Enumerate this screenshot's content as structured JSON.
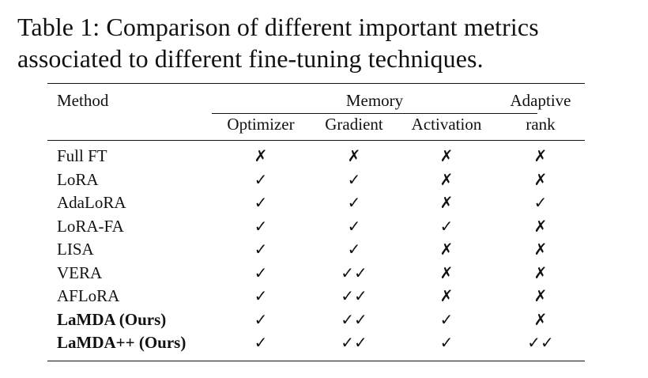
{
  "caption": {
    "line1": "Table 1:  Comparison of different important metrics",
    "line2": "associated to different fine-tuning techniques."
  },
  "header": {
    "method": "Method",
    "memory": "Memory",
    "adaptive_line1": "Adaptive",
    "adaptive_line2": "rank",
    "optimizer": "Optimizer",
    "gradient": "Gradient",
    "activation": "Activation"
  },
  "rows": [
    {
      "method": "Full FT",
      "bold": false,
      "optimizer": "✗",
      "gradient": "✗",
      "activation": "✗",
      "adaptive": "✗"
    },
    {
      "method": "LoRA",
      "bold": false,
      "optimizer": "✓",
      "gradient": "✓",
      "activation": "✗",
      "adaptive": "✗"
    },
    {
      "method": "AdaLoRA",
      "bold": false,
      "optimizer": "✓",
      "gradient": "✓",
      "activation": "✗",
      "adaptive": "✓"
    },
    {
      "method": "LoRA-FA",
      "bold": false,
      "optimizer": "✓",
      "gradient": "✓",
      "activation": "✓",
      "adaptive": "✗"
    },
    {
      "method": "LISA",
      "bold": false,
      "optimizer": "✓",
      "gradient": "✓",
      "activation": "✗",
      "adaptive": "✗"
    },
    {
      "method": "VERA",
      "bold": false,
      "optimizer": "✓",
      "gradient": "✓✓",
      "activation": "✗",
      "adaptive": "✗"
    },
    {
      "method": "AFLoRA",
      "bold": false,
      "optimizer": "✓",
      "gradient": "✓✓",
      "activation": "✗",
      "adaptive": "✗"
    },
    {
      "method": "LaMDA (Ours)",
      "bold": true,
      "optimizer": "✓",
      "gradient": "✓✓",
      "activation": "✓",
      "adaptive": "✗"
    },
    {
      "method": "LaMDA++ (Ours)",
      "bold": true,
      "optimizer": "✓",
      "gradient": "✓✓",
      "activation": "✓",
      "adaptive": "✓✓"
    }
  ]
}
